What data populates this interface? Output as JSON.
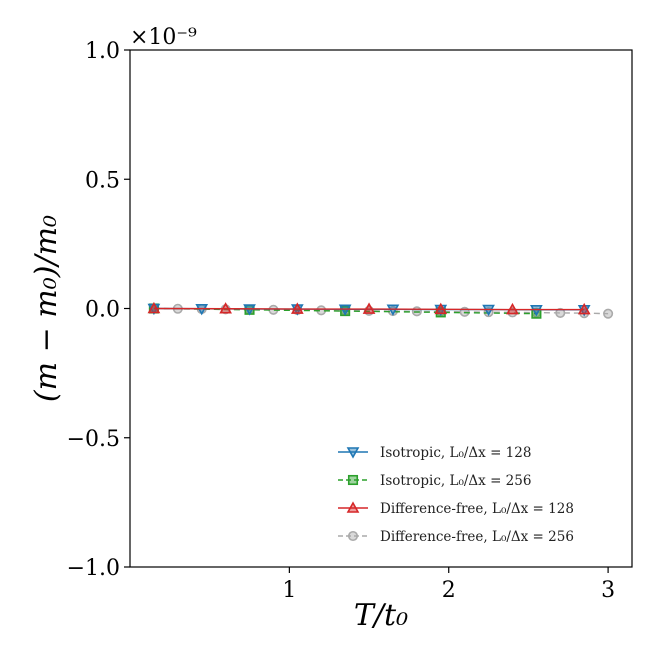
{
  "chart_data": {
    "type": "line",
    "title": "",
    "xlabel": "T/t₀",
    "ylabel": "(m − m₀)/m₀",
    "y_scale_multiplier": "×10⁻⁹",
    "xlim": [
      0.0,
      3.15
    ],
    "ylim": [
      -1.0,
      1.0
    ],
    "x_ticks": [
      1,
      2,
      3
    ],
    "x_tick_labels": [
      "1",
      "2",
      "3"
    ],
    "y_ticks": [
      -1.0,
      -0.5,
      0.0,
      0.5,
      1.0
    ],
    "y_tick_labels": [
      "−1.0",
      "−0.5",
      "0.0",
      "0.5",
      "1.0"
    ],
    "grid": false,
    "legend_position": "lower-right",
    "series": [
      {
        "name": "Isotropic, L₀/Δx = 128",
        "color": "#1f77b4",
        "marker": "triangle-down",
        "linestyle": "solid",
        "x": [
          0.15,
          0.45,
          0.75,
          1.05,
          1.35,
          1.65,
          1.95,
          2.25,
          2.55,
          2.85
        ],
        "y": [
          0.0,
          -0.001,
          -0.002,
          -0.002,
          -0.003,
          -0.003,
          -0.004,
          -0.004,
          -0.005,
          -0.005
        ]
      },
      {
        "name": "Isotropic, L₀/Δx = 256",
        "color": "#2ca02c",
        "marker": "square",
        "linestyle": "dashed",
        "x": [
          0.15,
          0.75,
          1.35,
          1.95,
          2.55
        ],
        "y": [
          0.0,
          -0.005,
          -0.01,
          -0.015,
          -0.02
        ]
      },
      {
        "name": "Difference-free, L₀/Δx = 128",
        "color": "#d62728",
        "marker": "triangle-up",
        "linestyle": "solid",
        "x": [
          0.15,
          0.6,
          1.05,
          1.5,
          1.95,
          2.4,
          2.85
        ],
        "y": [
          0.0,
          -0.001,
          -0.002,
          -0.002,
          -0.003,
          -0.004,
          -0.004
        ]
      },
      {
        "name": "Difference-free, L₀/Δx = 256",
        "color": "#aaaaaa",
        "marker": "circle",
        "linestyle": "dashed",
        "x": [
          0.15,
          0.3,
          0.45,
          0.6,
          0.75,
          0.9,
          1.05,
          1.2,
          1.35,
          1.5,
          1.65,
          1.8,
          1.95,
          2.1,
          2.25,
          2.4,
          2.55,
          2.7,
          2.85,
          3.0
        ],
        "y": [
          0.0,
          -0.001,
          -0.002,
          -0.003,
          -0.004,
          -0.005,
          -0.006,
          -0.007,
          -0.008,
          -0.009,
          -0.01,
          -0.011,
          -0.012,
          -0.013,
          -0.014,
          -0.015,
          -0.016,
          -0.017,
          -0.018,
          -0.02
        ]
      }
    ]
  }
}
